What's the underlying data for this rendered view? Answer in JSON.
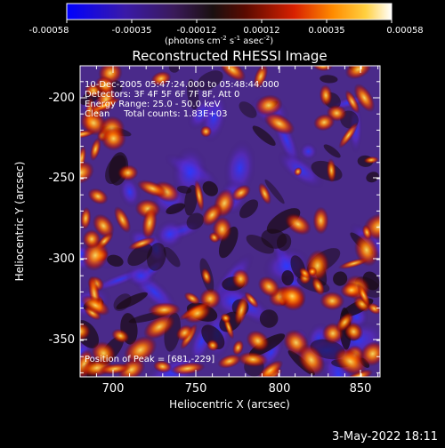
{
  "colorbar": {
    "ticks": [
      "-0.00058",
      "-0.00035",
      "-0.00012",
      "0.00012",
      "0.00035",
      "0.00058"
    ],
    "unit_label": "(photons cm",
    "unit_sup1": "-2",
    "unit_mid1": " s",
    "unit_sup2": "-1",
    "unit_mid2": " asec",
    "unit_sup3": "-2",
    "unit_end": ")"
  },
  "plot": {
    "title": "Reconstructed RHESSI Image",
    "x_label": "Heliocentric X (arcsec)",
    "y_label": "Heliocentric Y (arcsec)",
    "x_ticks": [
      "700",
      "750",
      "800",
      "850"
    ],
    "y_ticks": [
      "-200",
      "-250",
      "-300",
      "-350"
    ],
    "xlim": [
      670,
      862
    ],
    "ylim": [
      -375,
      -182
    ]
  },
  "annotations": {
    "line1": "10-Dec-2005 05:47:24.000 to 05:48:44.000",
    "line2": "Detectors: 3F 4F 5F 6F 7F 8F, Att 0",
    "line3": "Energy Range: 25.0 - 50.0 keV",
    "line4": "Clean     Total counts: 1.83E+03",
    "peak": "Position of Peak = [681,-229]"
  },
  "footer": {
    "date": "3-May-2022 18:11"
  }
}
